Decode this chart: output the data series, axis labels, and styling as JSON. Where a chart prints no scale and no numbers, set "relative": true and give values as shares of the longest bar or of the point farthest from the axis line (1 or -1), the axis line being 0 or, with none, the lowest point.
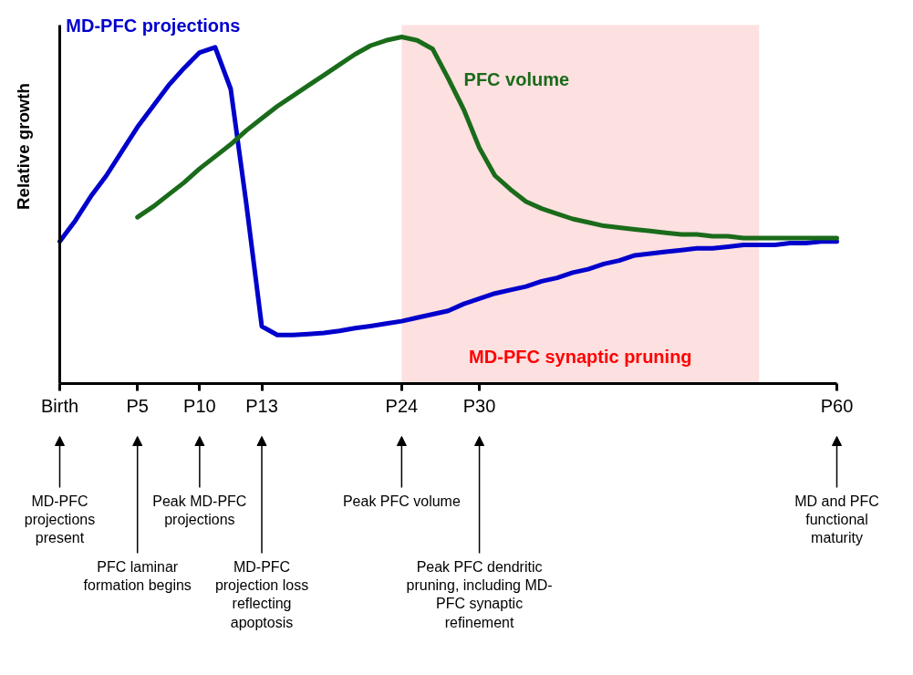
{
  "chart_data": {
    "type": "line",
    "relative": true,
    "ylabel": "Relative growth",
    "categories": [
      "Birth",
      null,
      null,
      null,
      null,
      "P5",
      null,
      null,
      null,
      "P10",
      null,
      null,
      null,
      "P13",
      null,
      null,
      null,
      null,
      null,
      null,
      null,
      null,
      "P24",
      null,
      null,
      null,
      null,
      "P30",
      null,
      null,
      null,
      null,
      null,
      null,
      null,
      null,
      null,
      null,
      null,
      null,
      null,
      null,
      null,
      null,
      null,
      null,
      null,
      null,
      null,
      null,
      "P60"
    ],
    "series": [
      {
        "name": "MD-PFC projections",
        "color": "#0000cc",
        "values": [
          0.41,
          0.47,
          0.54,
          0.6,
          0.67,
          0.74,
          0.8,
          0.86,
          0.91,
          0.955,
          0.97,
          0.85,
          0.52,
          0.165,
          0.14,
          0.14,
          0.143,
          0.146,
          0.152,
          0.16,
          0.166,
          0.173,
          0.18,
          0.19,
          0.2,
          0.21,
          0.23,
          0.245,
          0.26,
          0.27,
          0.28,
          0.295,
          0.305,
          0.32,
          0.33,
          0.345,
          0.355,
          0.37,
          0.375,
          0.38,
          0.385,
          0.39,
          0.39,
          0.395,
          0.4,
          0.4,
          0.4,
          0.405,
          0.405,
          0.41,
          0.41
        ]
      },
      {
        "name": "PFC volume",
        "color": "#1a6b1a",
        "values": [
          null,
          null,
          null,
          null,
          null,
          0.48,
          0.51,
          0.545,
          0.58,
          0.62,
          0.655,
          0.69,
          0.73,
          0.765,
          0.8,
          0.83,
          0.86,
          0.89,
          0.92,
          0.95,
          0.975,
          0.99,
          1.0,
          0.99,
          0.965,
          0.88,
          0.79,
          0.68,
          0.6,
          0.56,
          0.525,
          0.505,
          0.49,
          0.475,
          0.465,
          0.455,
          0.45,
          0.445,
          0.44,
          0.435,
          0.43,
          0.43,
          0.425,
          0.425,
          0.42,
          0.42,
          0.42,
          0.42,
          0.42,
          0.42,
          0.42
        ]
      }
    ],
    "annotations": [
      "MD-PFC synaptic pruning",
      "MD-PFC projections present",
      "PFC laminar formation begins",
      "Peak MD-PFC projections",
      "MD-PFC projection loss reflecting apoptosis",
      "Peak PFC volume",
      "Peak PFC dendritic pruning, including MD-PFC synaptic refinement",
      "MD and PFC functional maturity"
    ],
    "grid": false,
    "marker": "none",
    "line_style": "solid"
  }
}
